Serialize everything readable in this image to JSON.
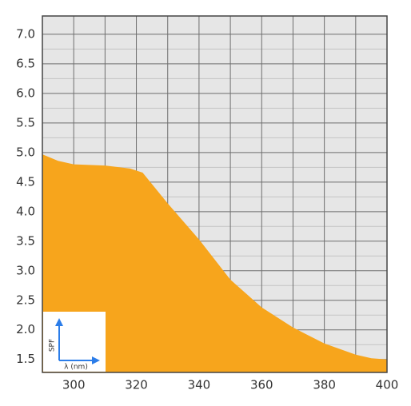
{
  "chart_data": {
    "type": "area",
    "xlabel": "λ (nm)",
    "ylabel": "SPF",
    "x": [
      290,
      295,
      300,
      310,
      318,
      322,
      330,
      340,
      350,
      360,
      370,
      380,
      390,
      395,
      400
    ],
    "values": [
      4.97,
      4.86,
      4.8,
      4.78,
      4.73,
      4.66,
      4.14,
      3.53,
      2.85,
      2.38,
      2.04,
      1.77,
      1.58,
      1.52,
      1.5
    ],
    "color": "#f7a51c",
    "xlim": [
      290,
      400
    ],
    "xticks": [
      300,
      320,
      340,
      360,
      380,
      400
    ],
    "xminorticks": [
      310,
      330,
      350,
      370,
      390
    ],
    "ylim": [
      1.28,
      7.31
    ],
    "yticks": [
      1.5,
      {
        "value": 2,
        "label": "2.0"
      },
      2.5,
      {
        "value": 3,
        "label": "3.0"
      },
      3.5,
      {
        "value": 4,
        "label": "4.0"
      },
      4.5,
      {
        "value": 5,
        "label": "5.0"
      },
      5.5,
      {
        "value": 6,
        "label": "6.0"
      },
      6.5,
      {
        "value": 7,
        "label": "7.0"
      }
    ],
    "yminorticks": [
      1.75,
      2.25,
      2.75,
      3.25,
      3.75,
      4.25,
      4.75,
      5.25,
      5.75,
      6.25,
      6.75
    ],
    "grid": true
  }
}
